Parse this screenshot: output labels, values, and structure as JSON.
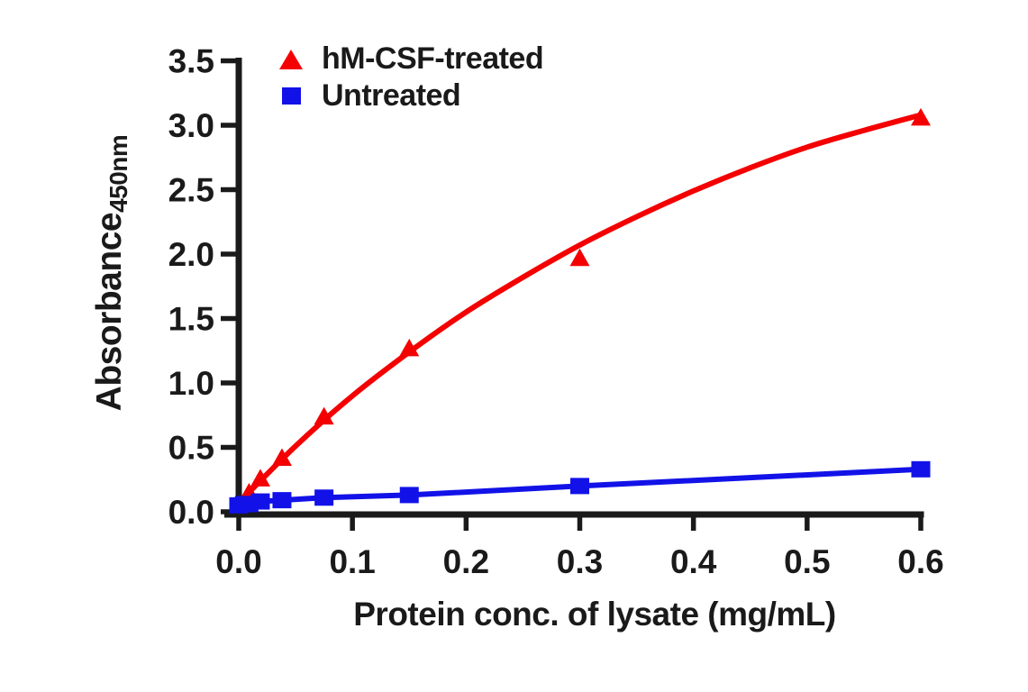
{
  "figure": {
    "background": "#ffffff",
    "text_color": "#1a1a1a",
    "axis_color": "#1a1a1a"
  },
  "chart_data": {
    "type": "scatter",
    "title": "",
    "xlabel": "Protein conc. of lysate (mg/mL)",
    "ylabel": "Absorbance",
    "ylabel_subscript": "450nm",
    "xlim": [
      0,
      0.6
    ],
    "ylim": [
      0,
      3.5
    ],
    "x_ticks": [
      0,
      0.1,
      0.2,
      0.3,
      0.4,
      0.5,
      0.6
    ],
    "x_tick_labels": [
      "0.0",
      "0.1",
      "0.2",
      "0.3",
      "0.4",
      "0.5",
      "0.6"
    ],
    "y_ticks": [
      0,
      0.5,
      1,
      1.5,
      2,
      2.5,
      3,
      3.5
    ],
    "y_tick_labels": [
      "0.0",
      "0.5",
      "1.0",
      "1.5",
      "2.0",
      "2.5",
      "3.0",
      "3.5"
    ],
    "grid": false,
    "legend_position": "upper-left-inside",
    "series": [
      {
        "name": "hM-CSF-treated",
        "marker": "triangle",
        "color": "#f40000",
        "line": "smooth-fit",
        "x": [
          0.009,
          0.019,
          0.038,
          0.075,
          0.15,
          0.3,
          0.6
        ],
        "y": [
          0.15,
          0.26,
          0.42,
          0.74,
          1.27,
          1.97,
          3.06
        ],
        "fit_x": [
          0,
          0.05,
          0.1,
          0.15,
          0.2,
          0.25,
          0.3,
          0.35,
          0.4,
          0.45,
          0.5,
          0.55,
          0.6
        ],
        "fit_y": [
          0.07,
          0.51,
          0.9,
          1.24,
          1.55,
          1.82,
          2.07,
          2.29,
          2.49,
          2.67,
          2.83,
          2.96,
          3.08
        ]
      },
      {
        "name": "Untreated",
        "marker": "square",
        "color": "#1212e8",
        "line": "straight",
        "x": [
          0,
          0.005,
          0.009,
          0.019,
          0.038,
          0.075,
          0.15,
          0.3,
          0.6
        ],
        "y": [
          0.05,
          0.06,
          0.06,
          0.08,
          0.09,
          0.11,
          0.13,
          0.2,
          0.33
        ]
      }
    ]
  }
}
